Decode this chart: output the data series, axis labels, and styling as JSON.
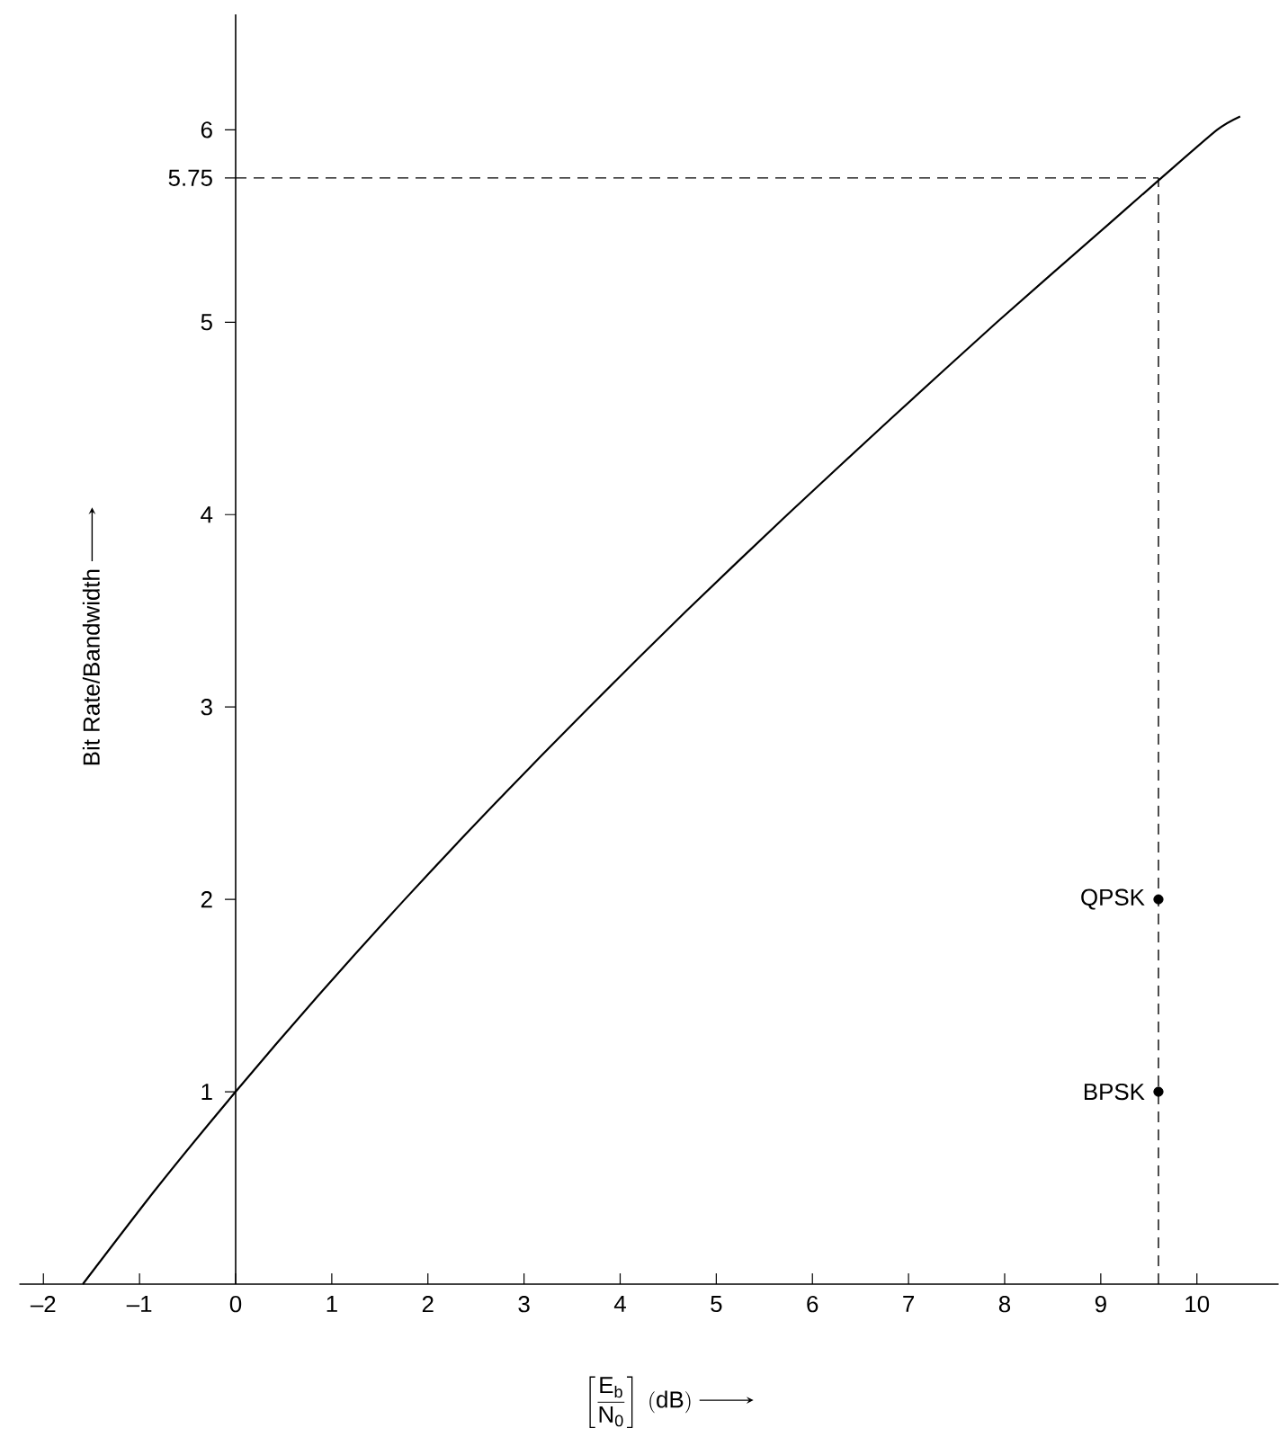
{
  "chart_data": {
    "type": "line",
    "xlabel": "\\left[\\frac{\\mathrm{E_b}}{\\mathrm{N_0}}\\right]\\;\\mathrm{(dB)}",
    "ylabel": "Bit Rate/Bandwidth",
    "xlim": [
      -2.25,
      10.85
    ],
    "ylim": [
      0,
      6.6
    ],
    "xticks": [
      {
        "value": -2,
        "label": "–2"
      },
      {
        "value": -1,
        "label": "–1"
      },
      0,
      1,
      2,
      3,
      4,
      5,
      6,
      7,
      8,
      9,
      10
    ],
    "yticks": [
      1,
      2,
      3,
      4,
      5,
      5.75,
      6
    ],
    "series": [
      {
        "color": "#000000",
        "x": [
          -1.59,
          -0.82,
          0,
          0.86,
          1.76,
          2.7,
          3.68,
          4.69,
          5.74,
          6.82,
          7.92,
          9.06,
          9.63,
          10.21,
          10.45
        ],
        "values": [
          0,
          0.5,
          1,
          1.5,
          2,
          2.5,
          3,
          3.5,
          4,
          4.5,
          5,
          5.5,
          5.75,
          6,
          6.07
        ]
      },
      {
        "name": "QPSK",
        "type": "scatter",
        "color": "#000000",
        "x": [
          9.6
        ],
        "values": [
          2
        ]
      },
      {
        "name": "BPSK",
        "type": "scatter",
        "color": "#000000",
        "x": [
          9.6
        ],
        "values": [
          1
        ]
      }
    ],
    "ref_lines": [
      {
        "axis": "y",
        "value": 5.75,
        "line_style": "dashed"
      },
      {
        "axis": "x",
        "value": 9.6,
        "line_style": "dashed"
      }
    ]
  }
}
